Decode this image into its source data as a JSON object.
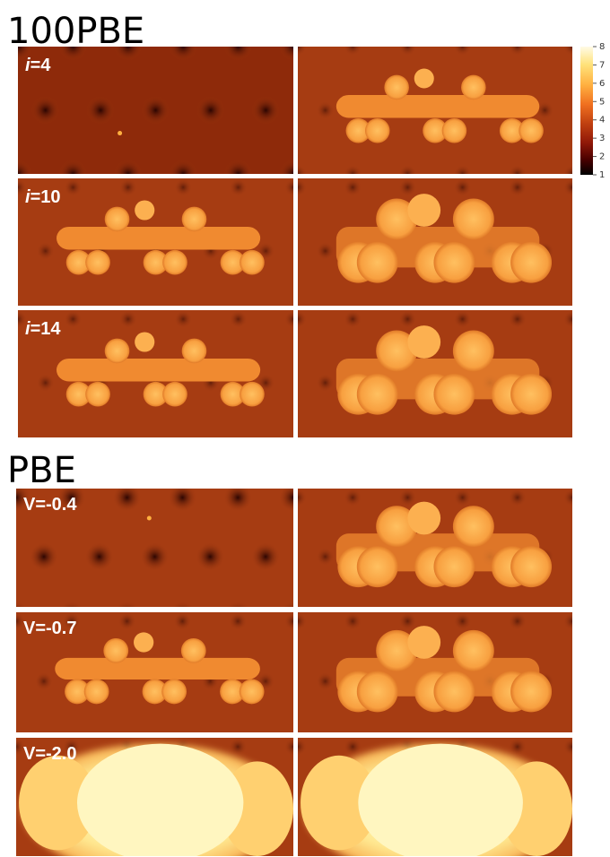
{
  "sections": [
    {
      "title": "100PBE",
      "rows": [
        {
          "symbol": "i",
          "label": "=4"
        },
        {
          "symbol": "i",
          "label": "=10"
        },
        {
          "symbol": "i",
          "label": "=14"
        }
      ]
    },
    {
      "title": "PBE",
      "rows": [
        {
          "label": "V=-0.4"
        },
        {
          "label": "V=-0.7"
        },
        {
          "label": "V=-2.0"
        }
      ]
    }
  ],
  "colorbar": {
    "lim": [
      1,
      8
    ],
    "ticks": [
      8,
      7,
      6,
      5,
      4,
      3,
      2,
      1
    ]
  }
}
